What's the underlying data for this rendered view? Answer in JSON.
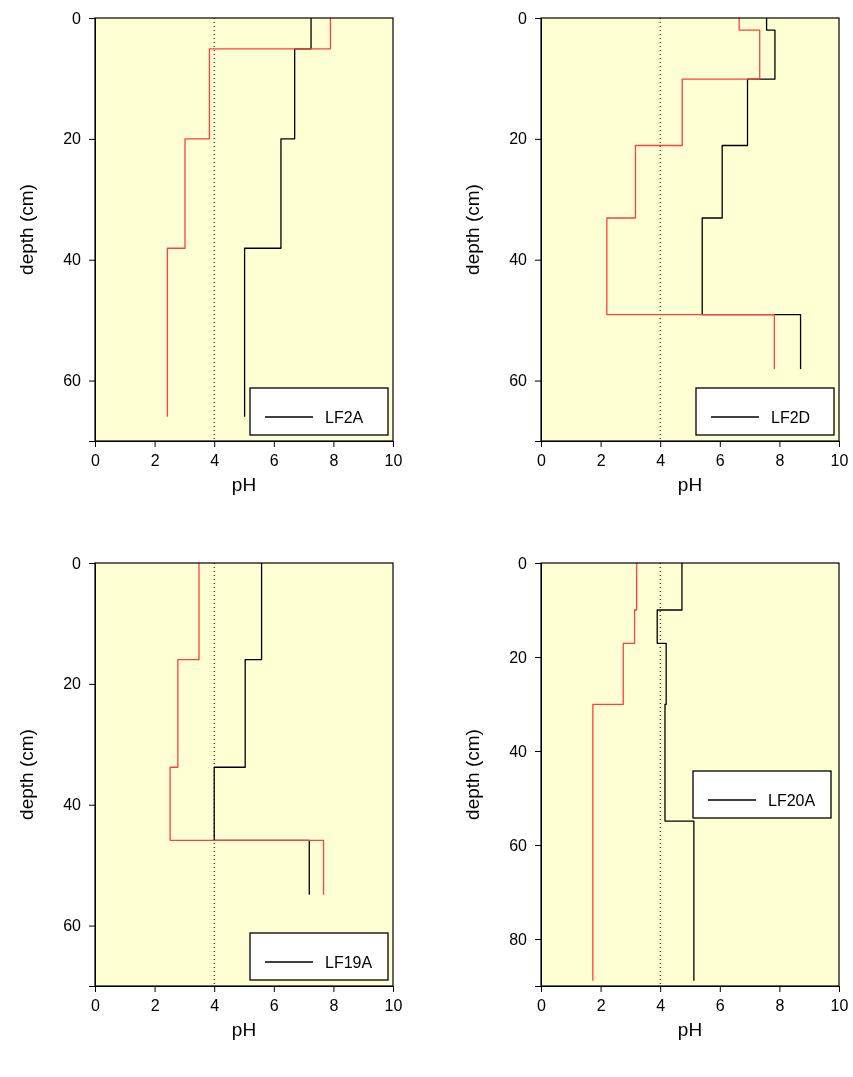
{
  "chart_data": [
    {
      "type": "line",
      "xlabel": "pH",
      "ylabel": "depth (cm)",
      "xlim": [
        0,
        10
      ],
      "xticks": [
        0,
        2,
        4,
        6,
        8,
        10
      ],
      "ylim": [
        70,
        0
      ],
      "yticks": [
        0,
        20,
        40,
        60
      ],
      "legend": "bottom right",
      "line_style": "solid",
      "marker": "none",
      "ref_lines": [
        {
          "axis": "x",
          "value": 4,
          "color": "#000000",
          "line_style": "dotted"
        }
      ],
      "series": [
        {
          "name": "LF2A",
          "color": "#000000",
          "x": [
            7.25,
            7.25,
            6.7,
            6.7,
            6.24,
            6.24,
            5.02,
            5.02
          ],
          "values": [
            0,
            5.1,
            5.1,
            20,
            20,
            38.1,
            38.1,
            66
          ]
        },
        {
          "color": "#ff4040",
          "x": [
            7.9,
            7.9,
            3.84,
            3.84,
            3.02,
            3.02,
            2.43,
            2.43
          ],
          "values": [
            0,
            5.1,
            5.1,
            20,
            20,
            38.1,
            38.1,
            66
          ]
        }
      ]
    },
    {
      "type": "line",
      "xlabel": "pH",
      "ylabel": "depth (cm)",
      "xlim": [
        0,
        10
      ],
      "xticks": [
        0,
        2,
        4,
        6,
        8,
        10
      ],
      "ylim": [
        70,
        0
      ],
      "yticks": [
        0,
        20,
        40,
        60
      ],
      "legend": "bottom right",
      "line_style": "solid",
      "marker": "none",
      "ref_lines": [
        {
          "axis": "x",
          "value": 4,
          "color": "#000000",
          "line_style": "dotted"
        }
      ],
      "series": [
        {
          "name": "LF2D",
          "color": "#000000",
          "x": [
            7.57,
            7.57,
            7.85,
            7.85,
            6.93,
            6.93,
            6.08,
            6.08,
            5.41,
            5.41,
            8.71,
            8.71
          ],
          "values": [
            0,
            2,
            2,
            10.1,
            10.1,
            21.1,
            21.1,
            33.1,
            33.1,
            49.1,
            49.1,
            58.1
          ]
        },
        {
          "color": "#ff4040",
          "x": [
            6.65,
            6.65,
            7.34,
            7.34,
            4.74,
            4.74,
            3.17,
            3.17,
            2.21,
            2.21,
            7.83,
            7.83
          ],
          "values": [
            0,
            2,
            2,
            10.1,
            10.1,
            21.1,
            21.1,
            33.1,
            33.1,
            49.1,
            49.1,
            58.1
          ]
        }
      ]
    },
    {
      "type": "line",
      "xlabel": "pH",
      "ylabel": "depth (cm)",
      "xlim": [
        0,
        10
      ],
      "xticks": [
        0,
        2,
        4,
        6,
        8,
        10
      ],
      "ylim": [
        70,
        0
      ],
      "yticks": [
        0,
        20,
        40,
        60
      ],
      "legend": "bottom right",
      "line_style": "solid",
      "marker": "none",
      "ref_lines": [
        {
          "axis": "x",
          "value": 4,
          "color": "#000000",
          "line_style": "dotted"
        }
      ],
      "series": [
        {
          "name": "LF19A",
          "color": "#000000",
          "x": [
            5.59,
            5.59,
            5.04,
            5.04,
            4.0,
            4.0,
            7.19,
            7.19
          ],
          "values": [
            0,
            16,
            16,
            33.8,
            33.8,
            45.9,
            45.9,
            54.9
          ]
        },
        {
          "color": "#ff4040",
          "x": [
            3.49,
            3.49,
            2.78,
            2.78,
            2.52,
            2.52,
            7.67,
            7.67
          ],
          "values": [
            0,
            16,
            16,
            33.8,
            33.8,
            45.9,
            45.9,
            54.9
          ]
        }
      ]
    },
    {
      "type": "line",
      "xlabel": "pH",
      "ylabel": "depth (cm)",
      "xlim": [
        0,
        10
      ],
      "xticks": [
        0,
        2,
        4,
        6,
        8,
        10
      ],
      "ylim": [
        90,
        0
      ],
      "yticks": [
        0,
        20,
        40,
        60,
        80
      ],
      "legend": "right",
      "line_style": "solid",
      "marker": "none",
      "ref_lines": [
        {
          "axis": "x",
          "value": 4,
          "color": "#000000",
          "line_style": "dotted"
        }
      ],
      "series": [
        {
          "name": "LF20A",
          "color": "#000000",
          "x": [
            4.73,
            4.73,
            3.9,
            3.9,
            4.2,
            4.2,
            4.16,
            4.16,
            5.13,
            5.13
          ],
          "values": [
            0,
            10,
            10,
            17.1,
            17.1,
            30.1,
            30.1,
            54.9,
            54.9,
            88.9
          ]
        },
        {
          "color": "#ff4040",
          "x": [
            3.21,
            3.21,
            3.14,
            3.14,
            2.76,
            2.76,
            1.74,
            1.74
          ],
          "values": [
            0,
            10,
            10,
            17.1,
            17.1,
            30.1,
            30.1,
            88.9
          ]
        }
      ]
    }
  ]
}
